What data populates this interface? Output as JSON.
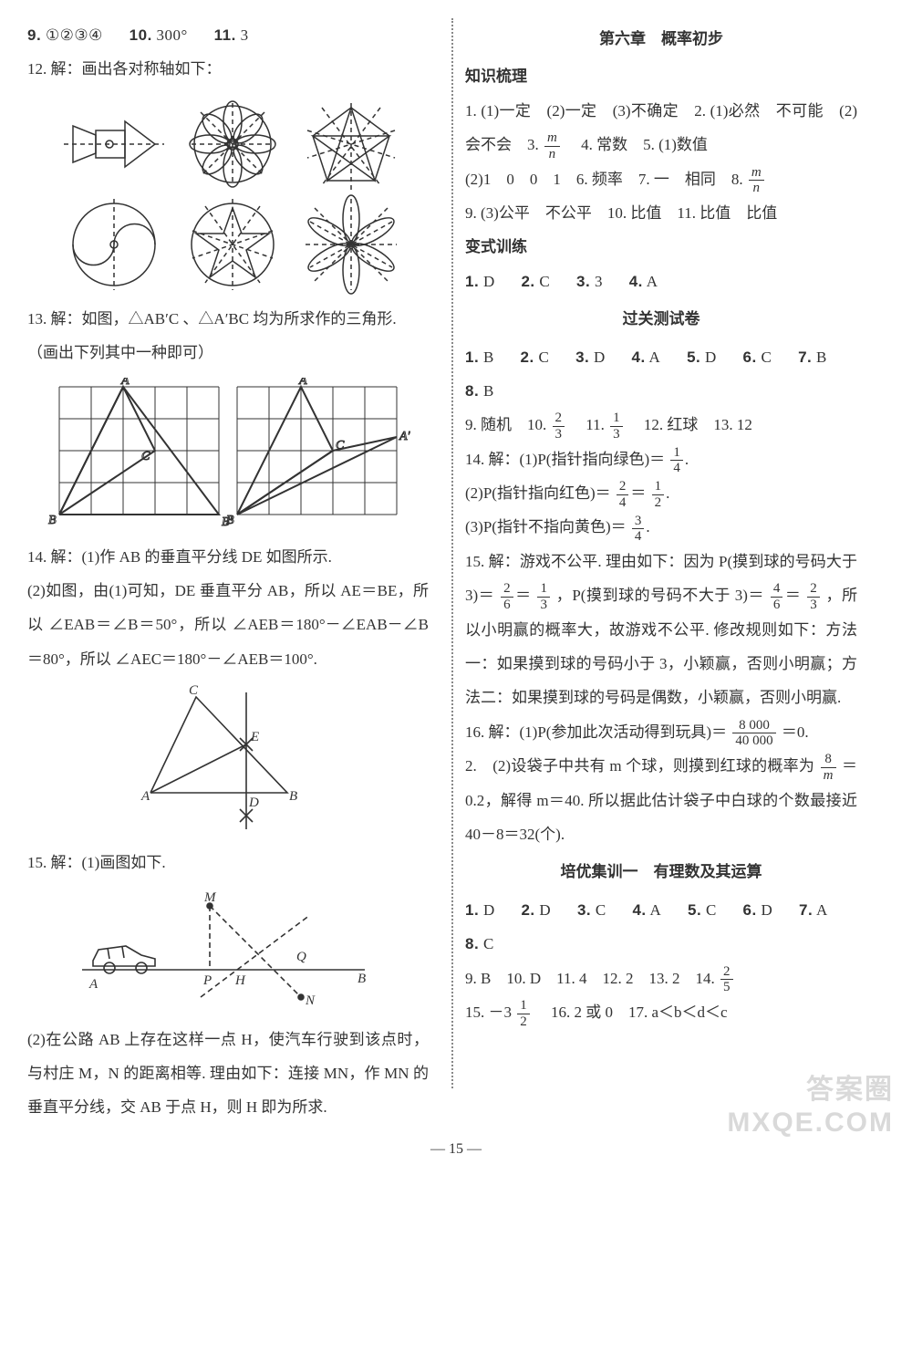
{
  "left": {
    "line1": [
      {
        "num": "9.",
        "ans": "①②③④"
      },
      {
        "num": "10.",
        "ans": "300°"
      },
      {
        "num": "11.",
        "ans": "3"
      }
    ],
    "q12": "12. 解：画出各对称轴如下：",
    "q13": "13. 解：如图，△AB′C 、△A′BC 均为所求作的三角形.",
    "q13b": "（画出下列其中一种即可）",
    "q14_1": "14. 解：(1)作 AB 的垂直平分线 DE 如图所示.",
    "q14_2": "(2)如图，由(1)可知，DE 垂直平分 AB，所以 AE＝BE，所以 ∠EAB＝∠B＝50°，所以 ∠AEB＝180°－∠EAB－∠B＝80°，所以 ∠AEC＝180°－∠AEB＝100°.",
    "q15_1": "15. 解：(1)画图如下.",
    "q15_2": "(2)在公路 AB 上存在这样一点 H，使汽车行驶到该点时，与村庄 M，N 的距离相等. 理由如下：连接 MN，作 MN 的垂直平分线，交 AB 于点 H，则 H 即为所求."
  },
  "right": {
    "chapter_title": "第六章　概率初步",
    "sec1_title": "知识梳理",
    "sec1": {
      "line1": "1. (1)一定　(2)一定　(3)不确定　2. (1)必然　不可能　(2)会不会　3. ",
      "frac3": {
        "num": "m",
        "den": "n"
      },
      "line1b": "　4. 常数　5. (1)数值",
      "line2a": "(2)1　0　0　1　6. 频率　7. 一　相同　8. ",
      "frac8": {
        "num": "m",
        "den": "n"
      },
      "line3": "9. (3)公平　不公平　10. 比值　11. 比值　比值"
    },
    "sec2_title": "变式训练",
    "sec2_answers": [
      {
        "n": "1.",
        "a": "D"
      },
      {
        "n": "2.",
        "a": "C"
      },
      {
        "n": "3.",
        "a": "3"
      },
      {
        "n": "4.",
        "a": "A"
      }
    ],
    "sec3_title": "过关测试卷",
    "sec3_row1": [
      {
        "n": "1.",
        "a": "B"
      },
      {
        "n": "2.",
        "a": "C"
      },
      {
        "n": "3.",
        "a": "D"
      },
      {
        "n": "4.",
        "a": "A"
      },
      {
        "n": "5.",
        "a": "D"
      },
      {
        "n": "6.",
        "a": "C"
      },
      {
        "n": "7.",
        "a": "B"
      },
      {
        "n": "8.",
        "a": "B"
      }
    ],
    "sec3_row2_pre": "9. 随机　10. ",
    "sec3_fr10": {
      "num": "2",
      "den": "3"
    },
    "sec3_row2_mid": "　11. ",
    "sec3_fr11": {
      "num": "1",
      "den": "3"
    },
    "sec3_row2_post": "　12. 红球　13. 12",
    "q14_a": "14. 解：(1)P(指针指向绿色)＝",
    "q14_fr1": {
      "num": "1",
      "den": "4"
    },
    "q14_b": "(2)P(指针指向红色)＝",
    "q14_fr2a": {
      "num": "2",
      "den": "4"
    },
    "q14_fr2b": {
      "num": "1",
      "den": "2"
    },
    "q14_c": "(3)P(指针不指向黄色)＝",
    "q14_fr3": {
      "num": "3",
      "den": "4"
    },
    "q15_a": "15. 解：游戏不公平. 理由如下：因为 P(摸到球的号码大于 3)＝",
    "q15_fr1": {
      "num": "2",
      "den": "6"
    },
    "q15_fr1b": {
      "num": "1",
      "den": "3"
    },
    "q15_mid1": "，P(摸到球的号码不大于 3)＝",
    "q15_fr2": {
      "num": "4",
      "den": "6"
    },
    "q15_fr2b": {
      "num": "2",
      "den": "3"
    },
    "q15_b": "，所以小明赢的概率大，故游戏不公平. 修改规则如下：方法一：如果摸到球的号码小于 3，小颖赢，否则小明赢；方法二：如果摸到球的号码是偶数，小颖赢，否则小明赢.",
    "q16_a": "16. 解：(1)P(参加此次活动得到玩具)＝",
    "q16_fr1": {
      "num": "8 000",
      "den": "40 000"
    },
    "q16_a2": "＝0.",
    "q16_b": "2.　(2)设袋子中共有 m 个球，则摸到红球的概率为",
    "q16_fr2": {
      "num": "8",
      "den": "m"
    },
    "q16_b2": "＝0.2，解得 m＝40. 所以据此估计袋子中白球的个数最接近 40－8＝32(个).",
    "sec4_title": "培优集训一　有理数及其运算",
    "sec4_row1": [
      {
        "n": "1.",
        "a": "D"
      },
      {
        "n": "2.",
        "a": "D"
      },
      {
        "n": "3.",
        "a": "C"
      },
      {
        "n": "4.",
        "a": "A"
      },
      {
        "n": "5.",
        "a": "C"
      },
      {
        "n": "6.",
        "a": "D"
      },
      {
        "n": "7.",
        "a": "A"
      },
      {
        "n": "8.",
        "a": "C"
      }
    ],
    "sec4_row2_a": "9. B　10. D　11. 4　12. 2　13. 2　14. ",
    "sec4_fr14": {
      "num": "2",
      "den": "5"
    },
    "sec4_row3_a": "15. －3 ",
    "sec4_fr15": {
      "num": "1",
      "den": "2"
    },
    "sec4_row3_b": "　16. 2 或 0　17. a＜b＜d＜c"
  },
  "pagenum": "15",
  "watermark": "答案圈\nMXQE.COM",
  "figstyle": {
    "stroke": "#333333",
    "dash": "5,4",
    "grid": "#333333",
    "light": "#666666"
  }
}
